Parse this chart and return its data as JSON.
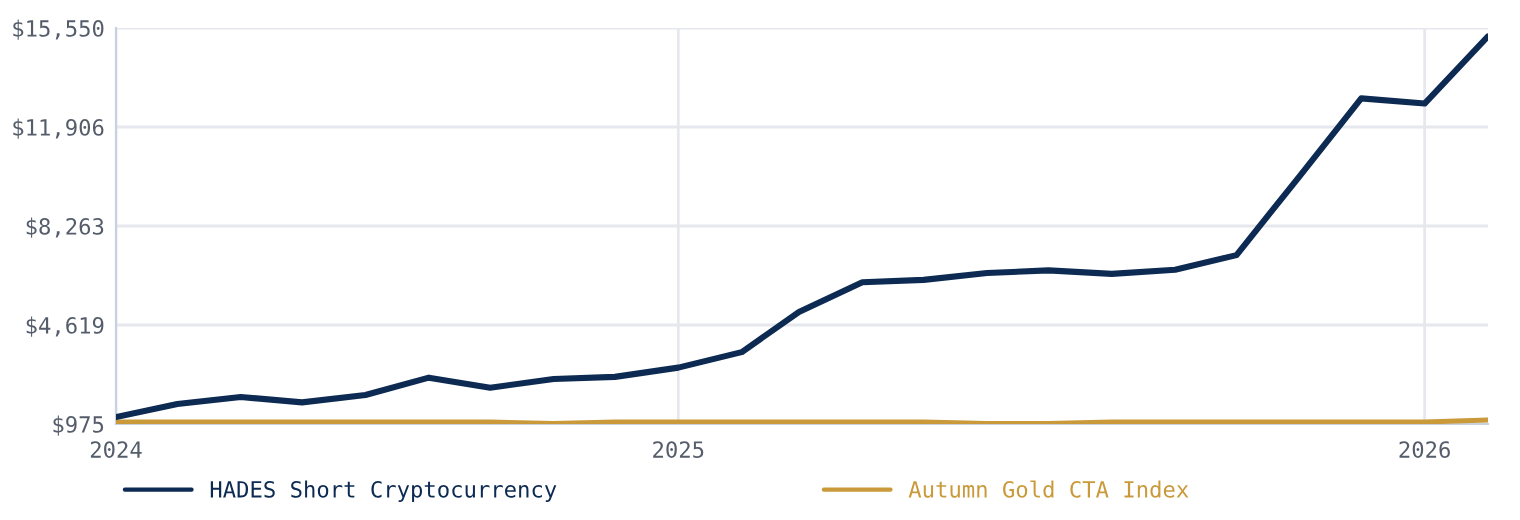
{
  "chart_data": {
    "type": "line",
    "x": [
      "2024-04",
      "2024-05",
      "2024-06",
      "2024-07",
      "2024-08",
      "2024-09",
      "2024-10",
      "2024-11",
      "2024-12",
      "2025-01",
      "2025-02",
      "2025-03",
      "2025-04",
      "2025-05",
      "2025-06",
      "2025-07",
      "2025-08",
      "2025-09",
      "2025-10",
      "2025-11",
      "2025-12",
      "2026-01",
      "2026-02"
    ],
    "series": [
      {
        "name": "HADES Short Cryptocurrency",
        "color": "#0d2b52",
        "values": [
          1230,
          1710,
          1970,
          1770,
          2040,
          2680,
          2310,
          2630,
          2710,
          3050,
          3620,
          5100,
          6190,
          6280,
          6530,
          6630,
          6500,
          6650,
          7190,
          10110,
          12960,
          12770,
          15240
        ]
      },
      {
        "name": "Autumn Gold CTA Index",
        "color": "#c9993a",
        "values": [
          1050,
          1050,
          1050,
          1050,
          1050,
          1050,
          1050,
          990,
          1050,
          1050,
          1050,
          1050,
          1050,
          1050,
          990,
          990,
          1050,
          1050,
          1050,
          1050,
          1050,
          1050,
          1120
        ]
      }
    ],
    "xlim": [
      "2024-04",
      "2026-02"
    ],
    "xticks": [
      {
        "value": "2024-04",
        "label": "2024"
      },
      {
        "value": "2025-01",
        "label": "2025"
      },
      {
        "value": "2026-01",
        "label": "2026"
      }
    ],
    "ylim": [
      975,
      15550
    ],
    "yticks": [
      {
        "value": 975,
        "label": "$975"
      },
      {
        "value": 4619,
        "label": "$4,619"
      },
      {
        "value": 8263,
        "label": "$8,263"
      },
      {
        "value": 11906,
        "label": "$11,906"
      },
      {
        "value": 15550,
        "label": "$15,550"
      }
    ],
    "grid": true,
    "legend": "bottom",
    "marker": "none",
    "line_style": "solid"
  }
}
